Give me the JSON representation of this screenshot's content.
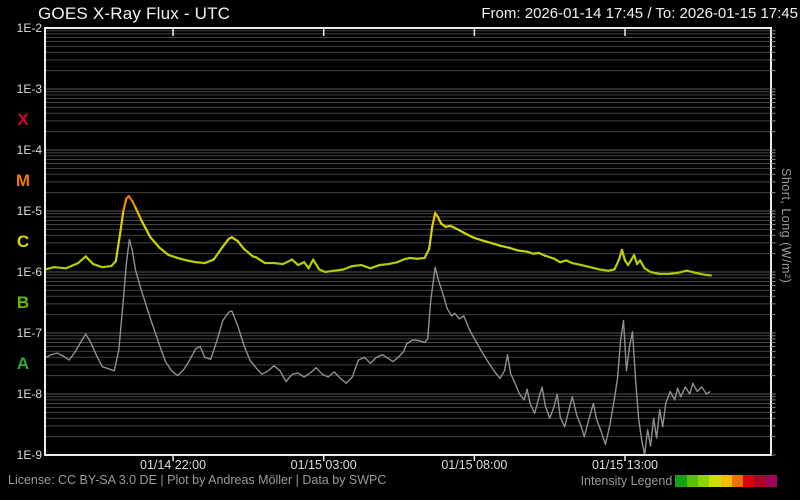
{
  "header": {
    "title": "GOES X-Ray Flux - UTC",
    "range": "From: 2026-01-14 17:45  /  To: 2026-01-15 17:45"
  },
  "footer": {
    "license": "License: CC BY-SA 3.0 DE | Plot by Andreas Möller | Data by SWPC",
    "intensity_legend_label": "Intensity Legend",
    "intensity_legend_colors": [
      "#16a016",
      "#58c000",
      "#8cd400",
      "#ccdf00",
      "#f0c000",
      "#f07000",
      "#e00000",
      "#b00028",
      "#a00458"
    ]
  },
  "chart_data": {
    "type": "line",
    "title": "GOES X-Ray Flux - UTC",
    "time_start": "2026-01-14 17:45",
    "time_end": "2026-01-15 17:45",
    "x_axis": {
      "ticks": [
        {
          "label": "01/14 22:00",
          "hour": 4.25
        },
        {
          "label": "01/15 03:00",
          "hour": 9.25
        },
        {
          "label": "01/15 08:00",
          "hour": 14.25
        },
        {
          "label": "01/15 13:00",
          "hour": 19.25
        }
      ]
    },
    "y_axis": {
      "scale": "log",
      "unit_label": "Short, Long (W/m²)",
      "ticks": [
        {
          "label": "1E-2",
          "exp": -2
        },
        {
          "label": "1E-3",
          "exp": -3
        },
        {
          "label": "1E-4",
          "exp": -4
        },
        {
          "label": "1E-5",
          "exp": -5
        },
        {
          "label": "1E-6",
          "exp": -6
        },
        {
          "label": "1E-7",
          "exp": -7
        },
        {
          "label": "1E-8",
          "exp": -8
        },
        {
          "label": "1E-9",
          "exp": -9
        }
      ]
    },
    "flare_classes": [
      {
        "label": "X",
        "color": "#d80030",
        "band_center_exp": -3.5
      },
      {
        "label": "M",
        "color": "#f07800",
        "band_center_exp": -4.5
      },
      {
        "label": "C",
        "color": "#d8d800",
        "band_center_exp": -5.5
      },
      {
        "label": "B",
        "color": "#66bb00",
        "band_center_exp": -6.5
      },
      {
        "label": "A",
        "color": "#33aa33",
        "band_center_exp": -7.5
      }
    ],
    "intensity_scale": [
      {
        "log": -8.0,
        "color": "#008000"
      },
      {
        "log": -6.8,
        "color": "#2f9e00"
      },
      {
        "log": -6.3,
        "color": "#74c000"
      },
      {
        "log": -6.0,
        "color": "#aacc00"
      },
      {
        "log": -5.6,
        "color": "#c8d400"
      },
      {
        "log": -5.2,
        "color": "#d8d800"
      },
      {
        "log": -5.0,
        "color": "#f0b000"
      },
      {
        "log": -4.9,
        "color": "#f09000"
      },
      {
        "log": -4.6,
        "color": "#f04800"
      },
      {
        "log": -4.0,
        "color": "#e00000"
      },
      {
        "log": -3.5,
        "color": "#b00028"
      },
      {
        "log": -3.0,
        "color": "#a00458"
      }
    ],
    "series": [
      {
        "name": "Long",
        "color_mode": "intensity",
        "points": [
          [
            0.0,
            1.1e-06
          ],
          [
            0.3,
            1.2e-06
          ],
          [
            0.7,
            1.15e-06
          ],
          [
            1.1,
            1.4e-06
          ],
          [
            1.35,
            1.8e-06
          ],
          [
            1.6,
            1.35e-06
          ],
          [
            1.9,
            1.2e-06
          ],
          [
            2.2,
            1.25e-06
          ],
          [
            2.35,
            1.5e-06
          ],
          [
            2.5,
            4.5e-06
          ],
          [
            2.6,
            1e-05
          ],
          [
            2.7,
            1.6e-05
          ],
          [
            2.78,
            1.75e-05
          ],
          [
            2.9,
            1.45e-05
          ],
          [
            3.0,
            1.15e-05
          ],
          [
            3.2,
            7e-06
          ],
          [
            3.5,
            3.7e-06
          ],
          [
            3.8,
            2.5e-06
          ],
          [
            4.1,
            1.9e-06
          ],
          [
            4.4,
            1.7e-06
          ],
          [
            4.7,
            1.55e-06
          ],
          [
            5.0,
            1.45e-06
          ],
          [
            5.3,
            1.4e-06
          ],
          [
            5.6,
            1.6e-06
          ],
          [
            5.9,
            2.6e-06
          ],
          [
            6.1,
            3.5e-06
          ],
          [
            6.2,
            3.7e-06
          ],
          [
            6.4,
            3.2e-06
          ],
          [
            6.6,
            2.4e-06
          ],
          [
            6.9,
            1.8e-06
          ],
          [
            7.0,
            1.75e-06
          ],
          [
            7.3,
            1.4e-06
          ],
          [
            7.6,
            1.4e-06
          ],
          [
            7.9,
            1.35e-06
          ],
          [
            8.2,
            1.6e-06
          ],
          [
            8.4,
            1.3e-06
          ],
          [
            8.6,
            1.45e-06
          ],
          [
            8.75,
            1.15e-06
          ],
          [
            8.9,
            1.6e-06
          ],
          [
            9.1,
            1.1e-06
          ],
          [
            9.3,
            1e-06
          ],
          [
            9.6,
            1.05e-06
          ],
          [
            9.9,
            1.1e-06
          ],
          [
            10.2,
            1.25e-06
          ],
          [
            10.5,
            1.3e-06
          ],
          [
            10.8,
            1.15e-06
          ],
          [
            11.1,
            1.3e-06
          ],
          [
            11.4,
            1.35e-06
          ],
          [
            11.7,
            1.45e-06
          ],
          [
            11.9,
            1.6e-06
          ],
          [
            12.1,
            1.7e-06
          ],
          [
            12.35,
            1.65e-06
          ],
          [
            12.6,
            1.7e-06
          ],
          [
            12.75,
            2.4e-06
          ],
          [
            12.85,
            5.5e-06
          ],
          [
            12.95,
            9.3e-06
          ],
          [
            13.05,
            7.8e-06
          ],
          [
            13.15,
            6.2e-06
          ],
          [
            13.3,
            5.5e-06
          ],
          [
            13.45,
            5.7e-06
          ],
          [
            13.6,
            5.3e-06
          ],
          [
            13.9,
            4.4e-06
          ],
          [
            14.2,
            3.7e-06
          ],
          [
            14.5,
            3.3e-06
          ],
          [
            14.8,
            3e-06
          ],
          [
            15.1,
            2.7e-06
          ],
          [
            15.4,
            2.5e-06
          ],
          [
            15.7,
            2.25e-06
          ],
          [
            16.0,
            2.15e-06
          ],
          [
            16.2,
            2e-06
          ],
          [
            16.4,
            2.05e-06
          ],
          [
            16.6,
            1.85e-06
          ],
          [
            16.9,
            1.65e-06
          ],
          [
            17.1,
            1.45e-06
          ],
          [
            17.3,
            1.55e-06
          ],
          [
            17.5,
            1.4e-06
          ],
          [
            17.8,
            1.3e-06
          ],
          [
            18.1,
            1.2e-06
          ],
          [
            18.4,
            1.1e-06
          ],
          [
            18.7,
            1.05e-06
          ],
          [
            18.9,
            1.1e-06
          ],
          [
            19.05,
            1.6e-06
          ],
          [
            19.15,
            2.3e-06
          ],
          [
            19.25,
            1.55e-06
          ],
          [
            19.35,
            1.3e-06
          ],
          [
            19.45,
            1.55e-06
          ],
          [
            19.55,
            1.9e-06
          ],
          [
            19.65,
            1.35e-06
          ],
          [
            19.75,
            1.55e-06
          ],
          [
            19.9,
            1.15e-06
          ],
          [
            20.1,
            1e-06
          ],
          [
            20.4,
            9.3e-07
          ],
          [
            20.7,
            9.3e-07
          ],
          [
            21.0,
            9.7e-07
          ],
          [
            21.3,
            1.05e-06
          ],
          [
            21.6,
            9.7e-07
          ],
          [
            21.9,
            9e-07
          ],
          [
            22.1,
            8.8e-07
          ]
        ]
      },
      {
        "name": "Short",
        "color": "#8f8f8f",
        "points": [
          [
            0.0,
            3.9e-08
          ],
          [
            0.2,
            4.4e-08
          ],
          [
            0.4,
            4.7e-08
          ],
          [
            0.6,
            4.2e-08
          ],
          [
            0.8,
            3.6e-08
          ],
          [
            1.0,
            4.9e-08
          ],
          [
            1.2,
            7.3e-08
          ],
          [
            1.35,
            9.6e-08
          ],
          [
            1.5,
            7.3e-08
          ],
          [
            1.7,
            4.4e-08
          ],
          [
            1.9,
            2.8e-08
          ],
          [
            2.1,
            2.6e-08
          ],
          [
            2.3,
            2.4e-08
          ],
          [
            2.45,
            5.3e-08
          ],
          [
            2.6,
            3.4e-07
          ],
          [
            2.7,
            1.4e-06
          ],
          [
            2.8,
            3.4e-06
          ],
          [
            2.9,
            2.2e-06
          ],
          [
            3.0,
            1.1e-06
          ],
          [
            3.2,
            5e-07
          ],
          [
            3.5,
            1.7e-07
          ],
          [
            3.8,
            6.3e-08
          ],
          [
            4.0,
            3.4e-08
          ],
          [
            4.2,
            2.4e-08
          ],
          [
            4.4,
            2e-08
          ],
          [
            4.6,
            2.5e-08
          ],
          [
            4.8,
            3.6e-08
          ],
          [
            5.0,
            5.5e-08
          ],
          [
            5.15,
            6e-08
          ],
          [
            5.3,
            4e-08
          ],
          [
            5.5,
            3.7e-08
          ],
          [
            5.7,
            7.3e-08
          ],
          [
            5.9,
            1.6e-07
          ],
          [
            6.1,
            2.2e-07
          ],
          [
            6.2,
            2.3e-07
          ],
          [
            6.4,
            1.3e-07
          ],
          [
            6.6,
            6.3e-08
          ],
          [
            6.8,
            3.6e-08
          ],
          [
            7.0,
            2.7e-08
          ],
          [
            7.2,
            2.1e-08
          ],
          [
            7.4,
            2.4e-08
          ],
          [
            7.6,
            2.9e-08
          ],
          [
            7.8,
            2.4e-08
          ],
          [
            8.0,
            1.6e-08
          ],
          [
            8.2,
            2.1e-08
          ],
          [
            8.4,
            2.2e-08
          ],
          [
            8.6,
            1.9e-08
          ],
          [
            8.8,
            2.2e-08
          ],
          [
            9.0,
            2.7e-08
          ],
          [
            9.2,
            2.1e-08
          ],
          [
            9.4,
            1.9e-08
          ],
          [
            9.6,
            2.3e-08
          ],
          [
            9.8,
            1.8e-08
          ],
          [
            10.0,
            1.5e-08
          ],
          [
            10.2,
            1.9e-08
          ],
          [
            10.4,
            3.6e-08
          ],
          [
            10.6,
            4e-08
          ],
          [
            10.8,
            3.2e-08
          ],
          [
            11.0,
            4e-08
          ],
          [
            11.2,
            4.4e-08
          ],
          [
            11.4,
            3.8e-08
          ],
          [
            11.55,
            3.4e-08
          ],
          [
            11.7,
            3.9e-08
          ],
          [
            11.9,
            4.9e-08
          ],
          [
            12.0,
            6.6e-08
          ],
          [
            12.2,
            7.7e-08
          ],
          [
            12.4,
            7.5e-08
          ],
          [
            12.6,
            7e-08
          ],
          [
            12.7,
            8e-08
          ],
          [
            12.8,
            3.4e-07
          ],
          [
            12.95,
            1.2e-06
          ],
          [
            13.05,
            7.6e-07
          ],
          [
            13.2,
            4.5e-07
          ],
          [
            13.35,
            2.5e-07
          ],
          [
            13.5,
            1.9e-07
          ],
          [
            13.6,
            2.1e-07
          ],
          [
            13.75,
            1.7e-07
          ],
          [
            13.9,
            1.9e-07
          ],
          [
            14.1,
            1.1e-07
          ],
          [
            14.3,
            7.3e-08
          ],
          [
            14.5,
            4.9e-08
          ],
          [
            14.7,
            3.4e-08
          ],
          [
            14.9,
            2.4e-08
          ],
          [
            15.1,
            1.8e-08
          ],
          [
            15.25,
            2.4e-08
          ],
          [
            15.35,
            4.4e-08
          ],
          [
            15.45,
            2.2e-08
          ],
          [
            15.6,
            1.5e-08
          ],
          [
            15.75,
            1e-08
          ],
          [
            15.9,
            8e-09
          ],
          [
            16.0,
            1.2e-08
          ],
          [
            16.1,
            7e-09
          ],
          [
            16.25,
            4.8e-09
          ],
          [
            16.4,
            9e-09
          ],
          [
            16.5,
            1.3e-08
          ],
          [
            16.6,
            6.5e-09
          ],
          [
            16.75,
            4e-09
          ],
          [
            16.9,
            6.3e-09
          ],
          [
            17.0,
            1e-08
          ],
          [
            17.1,
            4.2e-09
          ],
          [
            17.25,
            2.9e-09
          ],
          [
            17.4,
            5.8e-09
          ],
          [
            17.5,
            9e-09
          ],
          [
            17.65,
            4.5e-09
          ],
          [
            17.8,
            2.9e-09
          ],
          [
            17.9,
            2e-09
          ],
          [
            18.05,
            3.8e-09
          ],
          [
            18.2,
            7e-09
          ],
          [
            18.3,
            3.9e-09
          ],
          [
            18.45,
            2.5e-09
          ],
          [
            18.6,
            1.5e-09
          ],
          [
            18.75,
            3.1e-09
          ],
          [
            18.9,
            8.5e-09
          ],
          [
            19.0,
            1.8e-08
          ],
          [
            19.1,
            7.3e-08
          ],
          [
            19.2,
            1.6e-07
          ],
          [
            19.3,
            2.4e-08
          ],
          [
            19.4,
            6e-08
          ],
          [
            19.5,
            1.05e-07
          ],
          [
            19.6,
            1.8e-08
          ],
          [
            19.7,
            4e-09
          ],
          [
            19.8,
            1.8e-09
          ],
          [
            19.9,
            1e-09
          ],
          [
            20.0,
            2.6e-09
          ],
          [
            20.1,
            1.4e-09
          ],
          [
            20.2,
            4e-09
          ],
          [
            20.3,
            1.9e-09
          ],
          [
            20.4,
            5.5e-09
          ],
          [
            20.5,
            2.9e-09
          ],
          [
            20.6,
            7e-09
          ],
          [
            20.75,
            1.1e-08
          ],
          [
            20.9,
            8e-09
          ],
          [
            21.0,
            1.25e-08
          ],
          [
            21.1,
            9e-09
          ],
          [
            21.25,
            1.3e-08
          ],
          [
            21.4,
            1e-08
          ],
          [
            21.5,
            1.5e-08
          ],
          [
            21.65,
            1.1e-08
          ],
          [
            21.8,
            1.3e-08
          ],
          [
            21.95,
            1e-08
          ],
          [
            22.08,
            1.1e-08
          ]
        ]
      }
    ]
  }
}
